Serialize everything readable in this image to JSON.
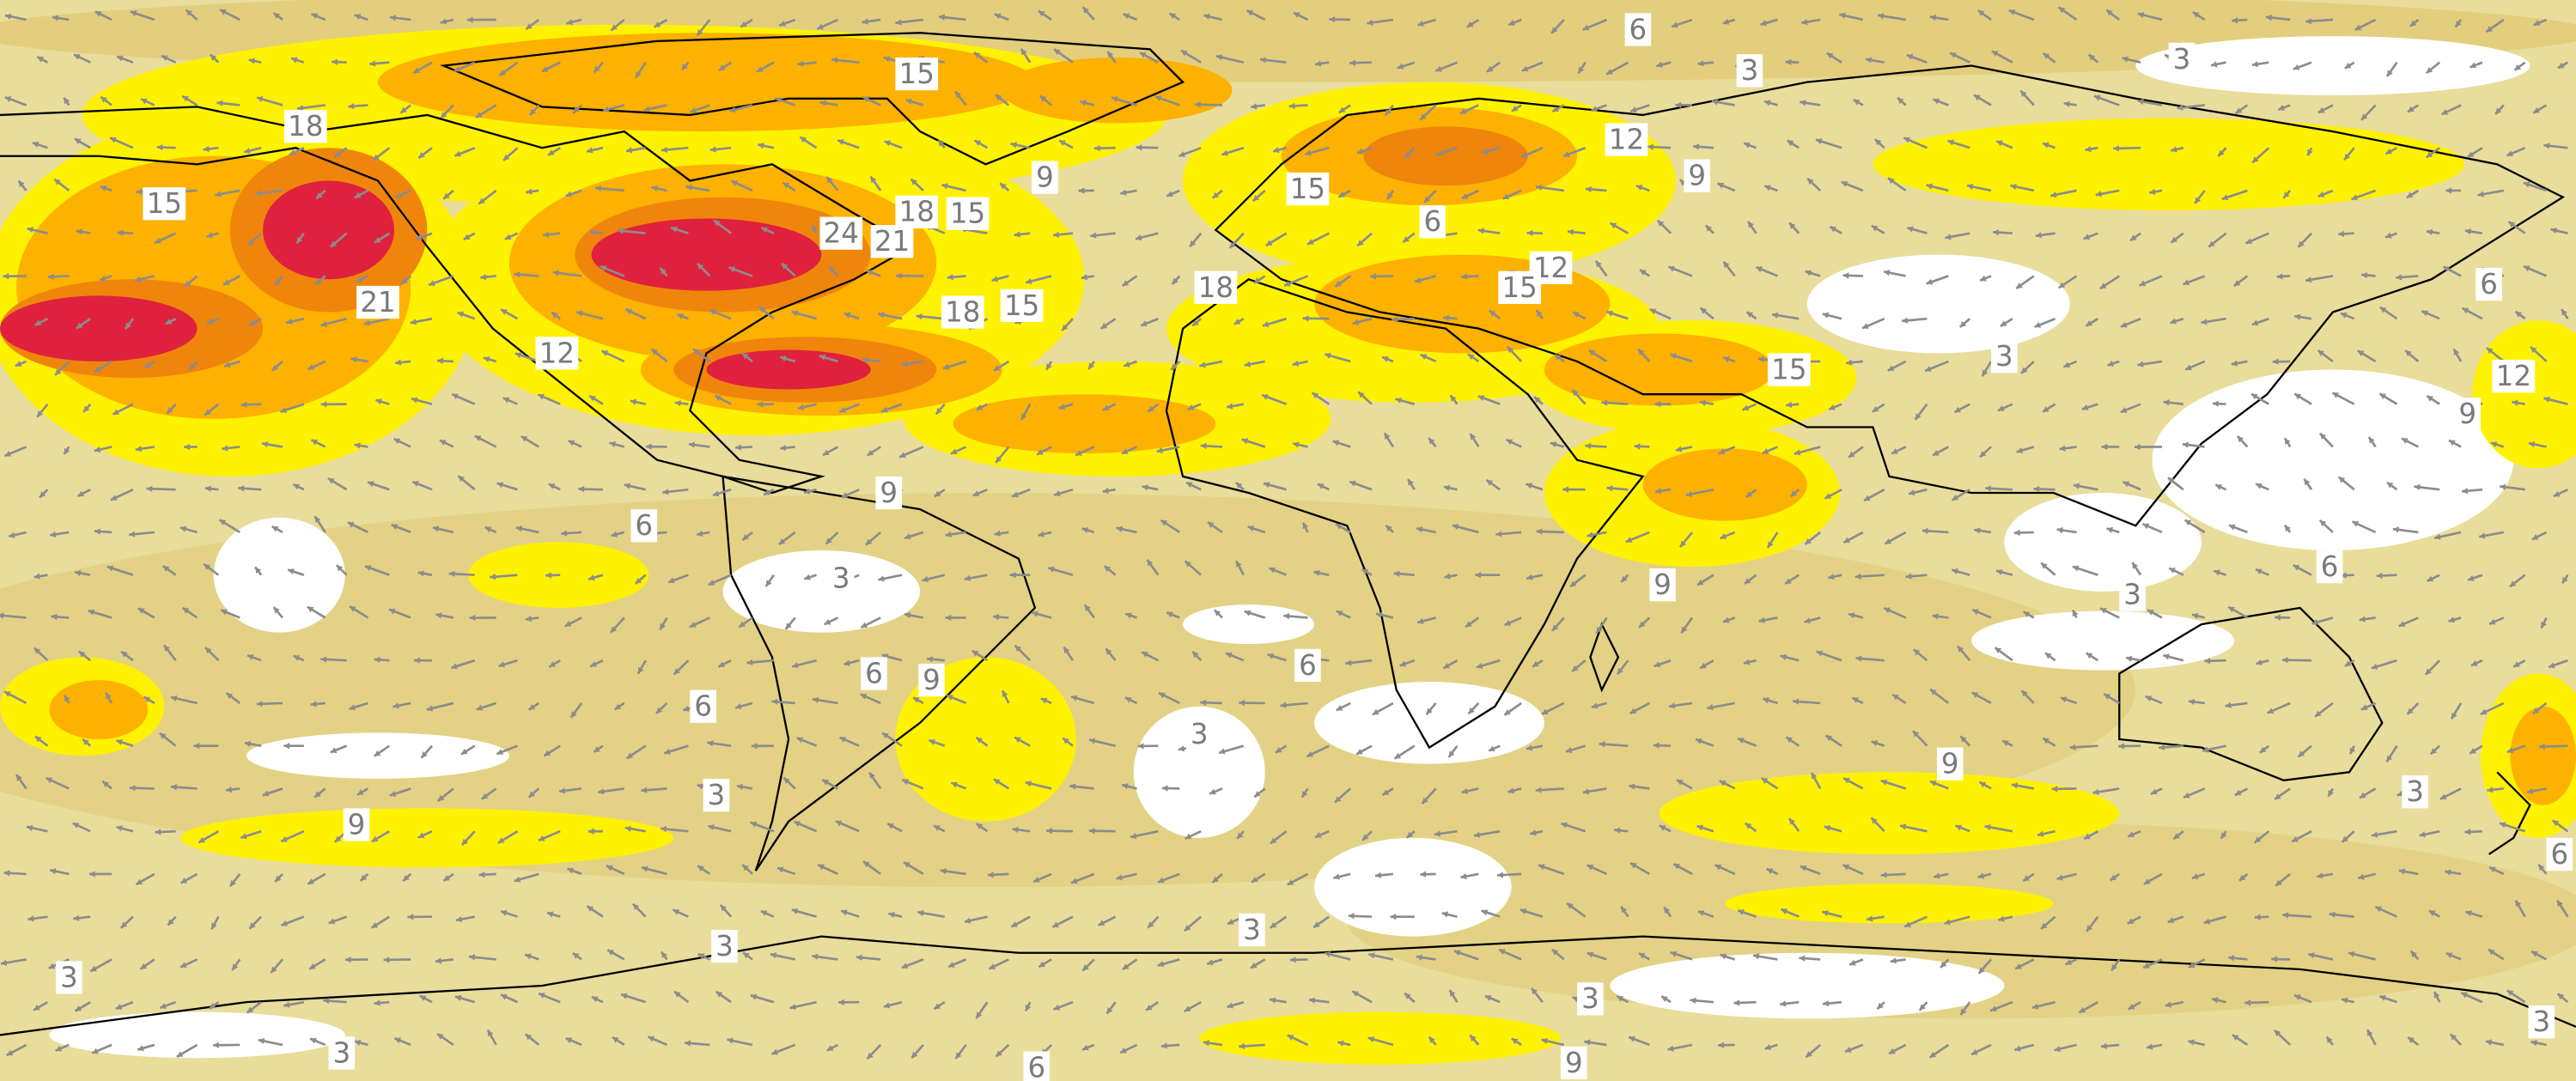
{
  "contour_labels": [
    6,
    15,
    3,
    3,
    18,
    15,
    9,
    12,
    9,
    15,
    6,
    24,
    21,
    18,
    15,
    12,
    15,
    21,
    18,
    18,
    15,
    12,
    15,
    3,
    6,
    12,
    9,
    9,
    6,
    9,
    3,
    6,
    3,
    6,
    9,
    6,
    6,
    3,
    9,
    3,
    9,
    3,
    6,
    3,
    3,
    3,
    3,
    3,
    6,
    9,
    3
  ]
}
